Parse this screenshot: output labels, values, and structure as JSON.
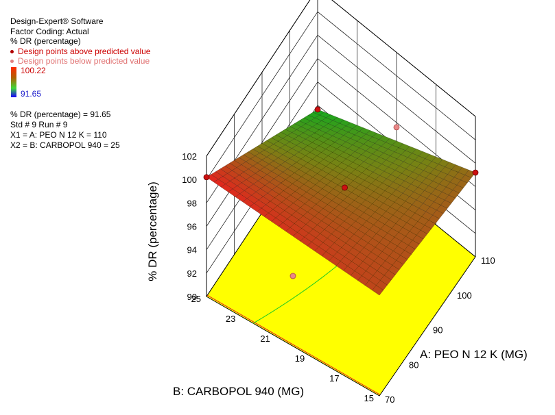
{
  "header": {
    "software": "Design-Expert® Software",
    "coding": "Factor Coding: Actual",
    "response": "% DR (percentage)",
    "legend_above": "Design points above predicted value",
    "legend_below": "Design points below predicted value",
    "colorbar_max": "100.22",
    "colorbar_min": "91.65"
  },
  "point_info": {
    "line1": "% DR (percentage) = 91.65",
    "line2": "Std # 9 Run # 9",
    "line3": "X1 = A: PEO N 12 K = 110",
    "line4": "X2 = B: CARBOPOL 940 = 25"
  },
  "colors": {
    "above": "#cc1111",
    "below": "#e88888",
    "floor": "#ffff00",
    "contour": "#22cc22",
    "floor_line": "#dd2222"
  },
  "chart_data": {
    "type": "surface3d",
    "zlabel": "% DR (percentage)",
    "xlabel": "A: PEO N 12 K (MG)",
    "ylabel": "B: CARBOPOL 940 (MG)",
    "x_ticks": [
      "70",
      "80",
      "90",
      "100",
      "110"
    ],
    "y_ticks": [
      "15",
      "17",
      "19",
      "21",
      "23",
      "25"
    ],
    "z_ticks": [
      "90",
      "92",
      "94",
      "96",
      "98",
      "100",
      "102"
    ],
    "xlim": [
      70,
      110
    ],
    "ylim": [
      15,
      25
    ],
    "zlim": [
      90,
      102
    ],
    "surface_corners": [
      {
        "x": 70,
        "y": 25,
        "z": 100.2
      },
      {
        "x": 110,
        "y": 25,
        "z": 91.65
      },
      {
        "x": 110,
        "y": 15,
        "z": 97.2
      },
      {
        "x": 70,
        "y": 15,
        "z": 98.6
      }
    ],
    "design_points_above": [
      {
        "x": 70,
        "y": 25,
        "z": 100.2
      },
      {
        "x": 110,
        "y": 25,
        "z": 91.65
      },
      {
        "x": 110,
        "y": 15,
        "z": 97.2
      },
      {
        "x": 90,
        "y": 20,
        "z": 97.0
      }
    ],
    "design_points_below": [
      {
        "x": 70,
        "y": 20,
        "z": 96.0
      },
      {
        "x": 110,
        "y": 20,
        "z": 95.6
      }
    ],
    "grid": true
  }
}
